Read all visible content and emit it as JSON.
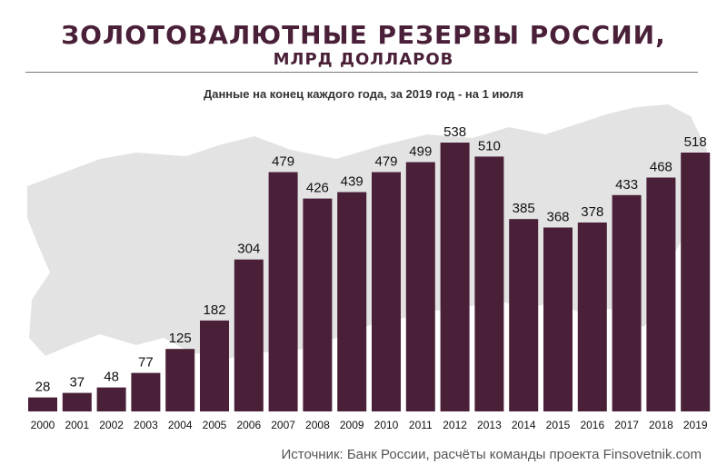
{
  "header": {
    "title": "ЗОЛОТОВАЛЮТНЫЕ РЕЗЕРВЫ РОССИИ,",
    "subtitle": "МЛРД ДОЛЛАРОВ",
    "note": "Данные на конец каждого года, за 2019 год - на 1 июля"
  },
  "footer": {
    "source": "Источник: Банк России, расчёты команды проекта Finsovetnik.com"
  },
  "colors": {
    "bar": "#4a2038",
    "map": "#e3e3e3",
    "title": "#4a2038"
  },
  "chart_data": {
    "type": "bar",
    "title": "ЗОЛОТОВАЛЮТНЫЕ РЕЗЕРВЫ РОССИИ, МЛРД ДОЛЛАРОВ",
    "xlabel": "",
    "ylabel": "",
    "categories": [
      "2000",
      "2001",
      "2002",
      "2003",
      "2004",
      "2005",
      "2006",
      "2007",
      "2008",
      "2009",
      "2010",
      "2011",
      "2012",
      "2013",
      "2014",
      "2015",
      "2016",
      "2017",
      "2018",
      "2019"
    ],
    "values": [
      28,
      37,
      48,
      77,
      125,
      182,
      304,
      479,
      426,
      439,
      479,
      499,
      538,
      510,
      385,
      368,
      378,
      433,
      468,
      518
    ],
    "ylim": [
      0,
      538
    ],
    "grid": false,
    "legend": "none"
  }
}
